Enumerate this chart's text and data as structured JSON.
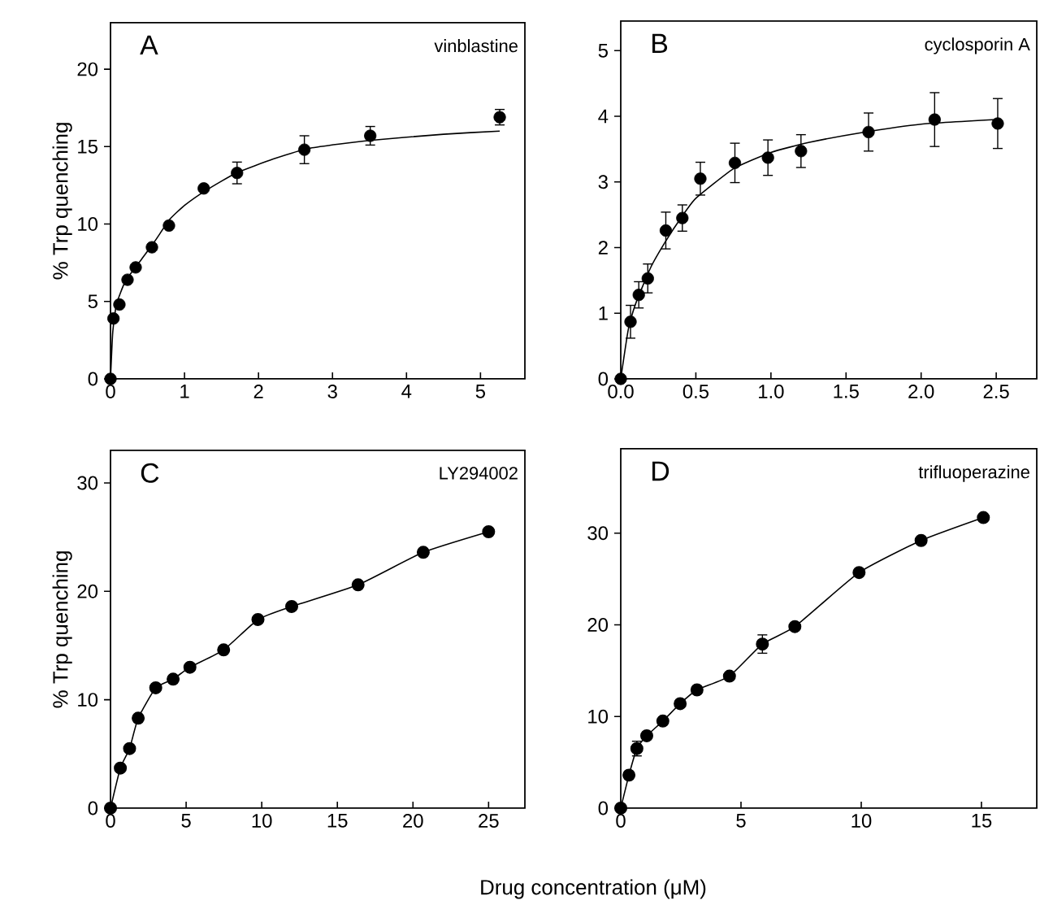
{
  "chart_data": [
    {
      "type": "scatter",
      "title": "A",
      "subtitle": "vinblastine",
      "ylabel": "% Trp quenching",
      "xlim": [
        0,
        5.6
      ],
      "ylim": [
        0,
        23
      ],
      "xticks": [
        0,
        1,
        2,
        3,
        4,
        5
      ],
      "yticks": [
        0,
        5,
        10,
        15,
        20
      ],
      "series": [
        {
          "marker": "circle",
          "color": "#000000",
          "x": [
            0,
            0.04,
            0.12,
            0.23,
            0.34,
            0.56,
            0.79,
            1.26,
            1.71,
            2.62,
            3.51,
            5.26
          ],
          "values": [
            0,
            3.9,
            4.8,
            6.4,
            7.2,
            8.5,
            9.9,
            12.3,
            13.3,
            14.8,
            15.7,
            16.9
          ],
          "errors": [
            null,
            null,
            null,
            null,
            null,
            null,
            null,
            null,
            0.7,
            0.9,
            0.6,
            0.5
          ]
        },
        {
          "type": "line",
          "marker": "none",
          "color": "#000000",
          "x": [
            0,
            0.03,
            0.08,
            0.2,
            0.4,
            0.6,
            0.8,
            1.0,
            1.3,
            1.7,
            2.2,
            2.7,
            3.5,
            4.5,
            5.26
          ],
          "values": [
            0,
            3,
            4.8,
            6.3,
            7.6,
            8.9,
            10.3,
            11.2,
            12.2,
            13.3,
            14.2,
            14.9,
            15.4,
            15.8,
            16.0
          ]
        }
      ]
    },
    {
      "type": "scatter",
      "title": "B",
      "subtitle": "cyclosporin A",
      "xlim": [
        0,
        2.77
      ],
      "ylim": [
        0,
        5.45
      ],
      "xticks": [
        {
          "value": 0,
          "label": "0.0"
        },
        {
          "value": 0.5,
          "label": "0.5"
        },
        {
          "value": 1,
          "label": "1.0"
        },
        {
          "value": 1.5,
          "label": "1.5"
        },
        {
          "value": 2,
          "label": "2.0"
        },
        {
          "value": 2.5,
          "label": "2.5"
        }
      ],
      "yticks": [
        0,
        1,
        2,
        3,
        4,
        5
      ],
      "series": [
        {
          "marker": "circle",
          "color": "#000000",
          "x": [
            0,
            0.065,
            0.12,
            0.18,
            0.3,
            0.41,
            0.53,
            0.76,
            0.98,
            1.2,
            1.65,
            2.09,
            2.51
          ],
          "values": [
            0,
            0.87,
            1.28,
            1.53,
            2.26,
            2.45,
            3.05,
            3.29,
            3.37,
            3.47,
            3.76,
            3.95,
            3.89
          ],
          "errors": [
            null,
            0.25,
            0.2,
            0.22,
            0.28,
            0.2,
            0.25,
            0.3,
            0.27,
            0.25,
            0.29,
            0.41,
            0.38
          ]
        },
        {
          "type": "line",
          "marker": "none",
          "color": "#000000",
          "x": [
            0,
            0.05,
            0.1,
            0.2,
            0.3,
            0.4,
            0.5,
            0.75,
            1.0,
            1.25,
            1.6,
            2.0,
            2.5
          ],
          "values": [
            0,
            0.75,
            1.15,
            1.7,
            2.1,
            2.45,
            2.75,
            3.2,
            3.45,
            3.6,
            3.75,
            3.88,
            3.95
          ]
        }
      ]
    },
    {
      "type": "line",
      "title": "C",
      "subtitle": "LY294002",
      "ylabel": "% Trp quenching",
      "xlabel": "Drug concentration (μM)",
      "xlim": [
        0,
        27.4
      ],
      "ylim": [
        0,
        33
      ],
      "xticks": [
        0,
        5,
        10,
        15,
        20,
        25
      ],
      "yticks": [
        0,
        10,
        20,
        30
      ],
      "series": [
        {
          "marker": "circle",
          "color": "#000000",
          "x": [
            0,
            0.65,
            1.26,
            1.83,
            2.99,
            4.14,
            5.25,
            7.48,
            9.75,
            11.98,
            16.37,
            20.68,
            25
          ],
          "values": [
            0,
            3.7,
            5.5,
            8.3,
            11.1,
            11.9,
            13.0,
            14.6,
            17.4,
            18.6,
            20.6,
            23.6,
            25.5
          ]
        }
      ]
    },
    {
      "type": "line",
      "title": "D",
      "subtitle": "trifluoperazine",
      "xlim": [
        0,
        17.3
      ],
      "ylim": [
        0,
        39.2
      ],
      "xticks": [
        0,
        5,
        10,
        15
      ],
      "yticks": [
        0,
        10,
        20,
        30
      ],
      "series": [
        {
          "marker": "circle",
          "color": "#000000",
          "x": [
            0,
            0.34,
            0.67,
            1.08,
            1.75,
            2.47,
            3.17,
            4.52,
            5.89,
            7.24,
            9.91,
            12.49,
            15.08
          ],
          "values": [
            0,
            3.6,
            6.5,
            7.9,
            9.5,
            11.4,
            12.9,
            14.4,
            17.9,
            19.8,
            25.7,
            29.2,
            31.7
          ],
          "errors": [
            null,
            null,
            0.8,
            null,
            null,
            null,
            null,
            null,
            1.0,
            null,
            null,
            null,
            null
          ]
        }
      ]
    }
  ]
}
